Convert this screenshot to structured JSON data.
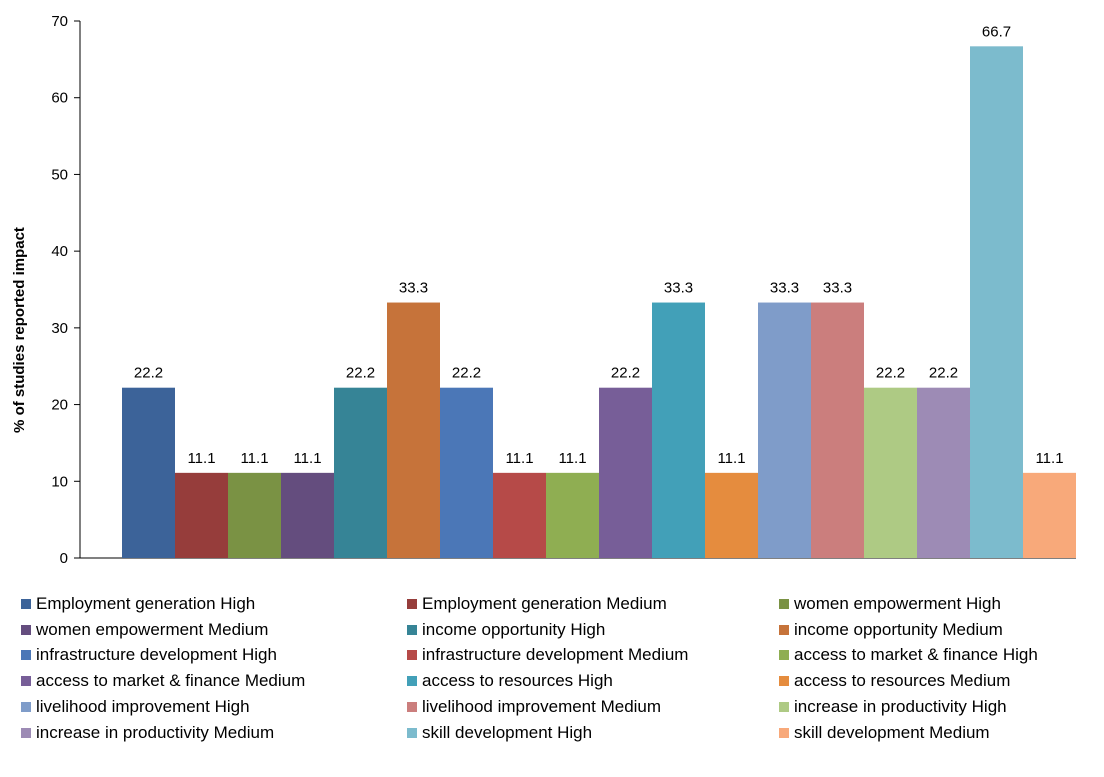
{
  "chart_data": {
    "type": "bar",
    "title": "",
    "xlabel": "",
    "ylabel": "% of studies reported impact",
    "ylim": [
      0,
      70
    ],
    "yticks": [
      0,
      10,
      20,
      30,
      40,
      50,
      60,
      70
    ],
    "grid": false,
    "legend_position": "bottom",
    "series": [
      {
        "name": "Employment generation High",
        "value": 22.2,
        "color": "#3C6399"
      },
      {
        "name": "Employment generation Medium",
        "value": 11.1,
        "color": "#963D3B"
      },
      {
        "name": "women empowerment High",
        "value": 11.1,
        "color": "#7A9244"
      },
      {
        "name": "women empowerment Medium",
        "value": 11.1,
        "color": "#644D7E"
      },
      {
        "name": "income opportunity High",
        "value": 22.2,
        "color": "#368496"
      },
      {
        "name": "income opportunity Medium",
        "value": 33.3,
        "color": "#C6733A"
      },
      {
        "name": "infrastructure development High",
        "value": 22.2,
        "color": "#4B77B7"
      },
      {
        "name": "infrastructure development Medium",
        "value": 11.1,
        "color": "#B64A48"
      },
      {
        "name": "access to market & finance High",
        "value": 11.1,
        "color": "#8FAE52"
      },
      {
        "name": "access to market & finance Medium",
        "value": 22.2,
        "color": "#775E98"
      },
      {
        "name": "access to resources High",
        "value": 33.3,
        "color": "#42A0B8"
      },
      {
        "name": "access to resources Medium",
        "value": 11.1,
        "color": "#E58C3E"
      },
      {
        "name": "livelihood improvement High",
        "value": 33.3,
        "color": "#7F9CC9"
      },
      {
        "name": "livelihood improvement Medium",
        "value": 33.3,
        "color": "#CB7E7D"
      },
      {
        "name": "increase in productivity High",
        "value": 22.2,
        "color": "#AECA84"
      },
      {
        "name": "increase in productivity Medium",
        "value": 22.2,
        "color": "#9D8BB5"
      },
      {
        "name": "skill development High",
        "value": 66.7,
        "color": "#7CBBCD"
      },
      {
        "name": "skill development Medium",
        "value": 11.1,
        "color": "#F8A97A"
      }
    ]
  }
}
